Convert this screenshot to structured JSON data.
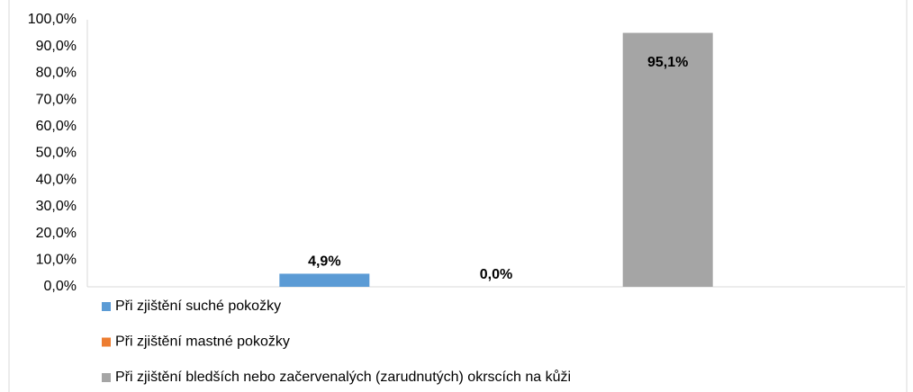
{
  "chart_data": {
    "type": "bar",
    "categories": [
      null
    ],
    "series": [
      {
        "name": "Při zjištění suché pokožky",
        "color": "#5b9bd5",
        "values": [
          4.9
        ],
        "value_labels": [
          "4,9%"
        ]
      },
      {
        "name": "Při zjištění mastné pokožky",
        "color": "#ed7d31",
        "values": [
          0.0
        ],
        "value_labels": [
          "0,0%"
        ]
      },
      {
        "name": "Při zjištění bledších nebo začervenalých (zarudnutých) okrscích na kůži",
        "color": "#a5a5a5",
        "values": [
          95.1
        ],
        "value_labels": [
          "95,1%"
        ]
      }
    ],
    "ylim": [
      0,
      100
    ],
    "yticks": [
      {
        "value": 0,
        "label": "0,0%"
      },
      {
        "value": 10,
        "label": "10,0%"
      },
      {
        "value": 20,
        "label": "20,0%"
      },
      {
        "value": 30,
        "label": "30,0%"
      },
      {
        "value": 40,
        "label": "40,0%"
      },
      {
        "value": 50,
        "label": "50,0%"
      },
      {
        "value": 60,
        "label": "60,0%"
      },
      {
        "value": 70,
        "label": "70,0%"
      },
      {
        "value": 80,
        "label": "80,0%"
      },
      {
        "value": 90,
        "label": "90,0%"
      },
      {
        "value": 100,
        "label": "100,0%"
      }
    ],
    "grid": false,
    "legend": "bottom-left"
  }
}
